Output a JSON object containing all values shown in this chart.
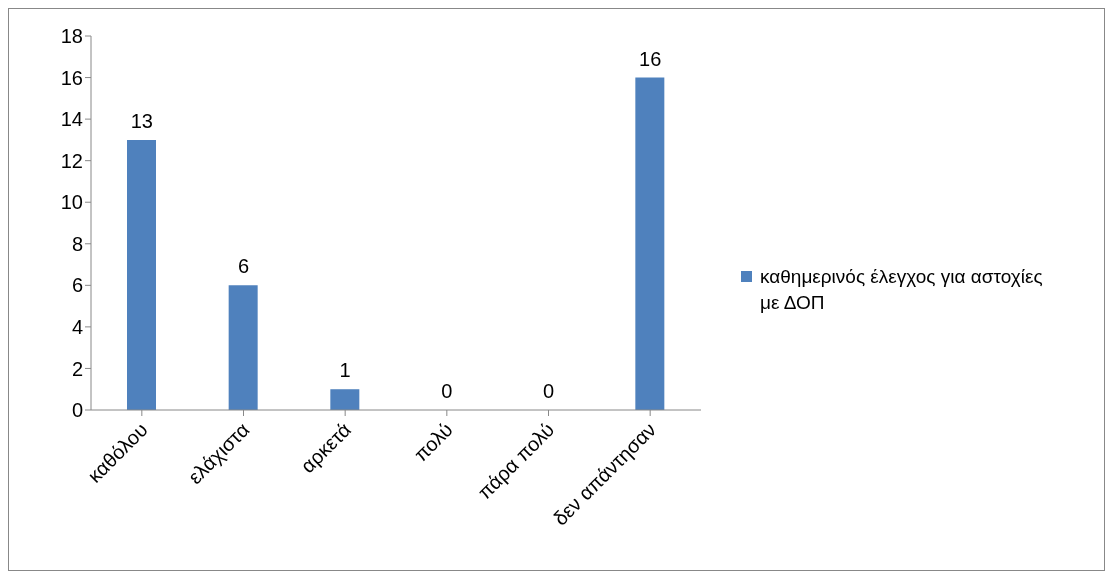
{
  "chart_data": {
    "type": "bar",
    "categories": [
      "καθόλου",
      "ελάχιστα",
      "αρκετά",
      "πολύ",
      "πάρα πολύ",
      "δεν απάντησαν"
    ],
    "series": [
      {
        "name": "καθημερινός έλεγχος για αστοχίες με ΔΟΠ",
        "color": "#4f81bd",
        "values": [
          13,
          6,
          1,
          0,
          0,
          16
        ]
      }
    ],
    "ylim": [
      0,
      18
    ],
    "yticks": [
      0,
      2,
      4,
      6,
      8,
      10,
      12,
      14,
      16,
      18
    ],
    "data_labels": true,
    "legend": "right",
    "grid": false
  }
}
